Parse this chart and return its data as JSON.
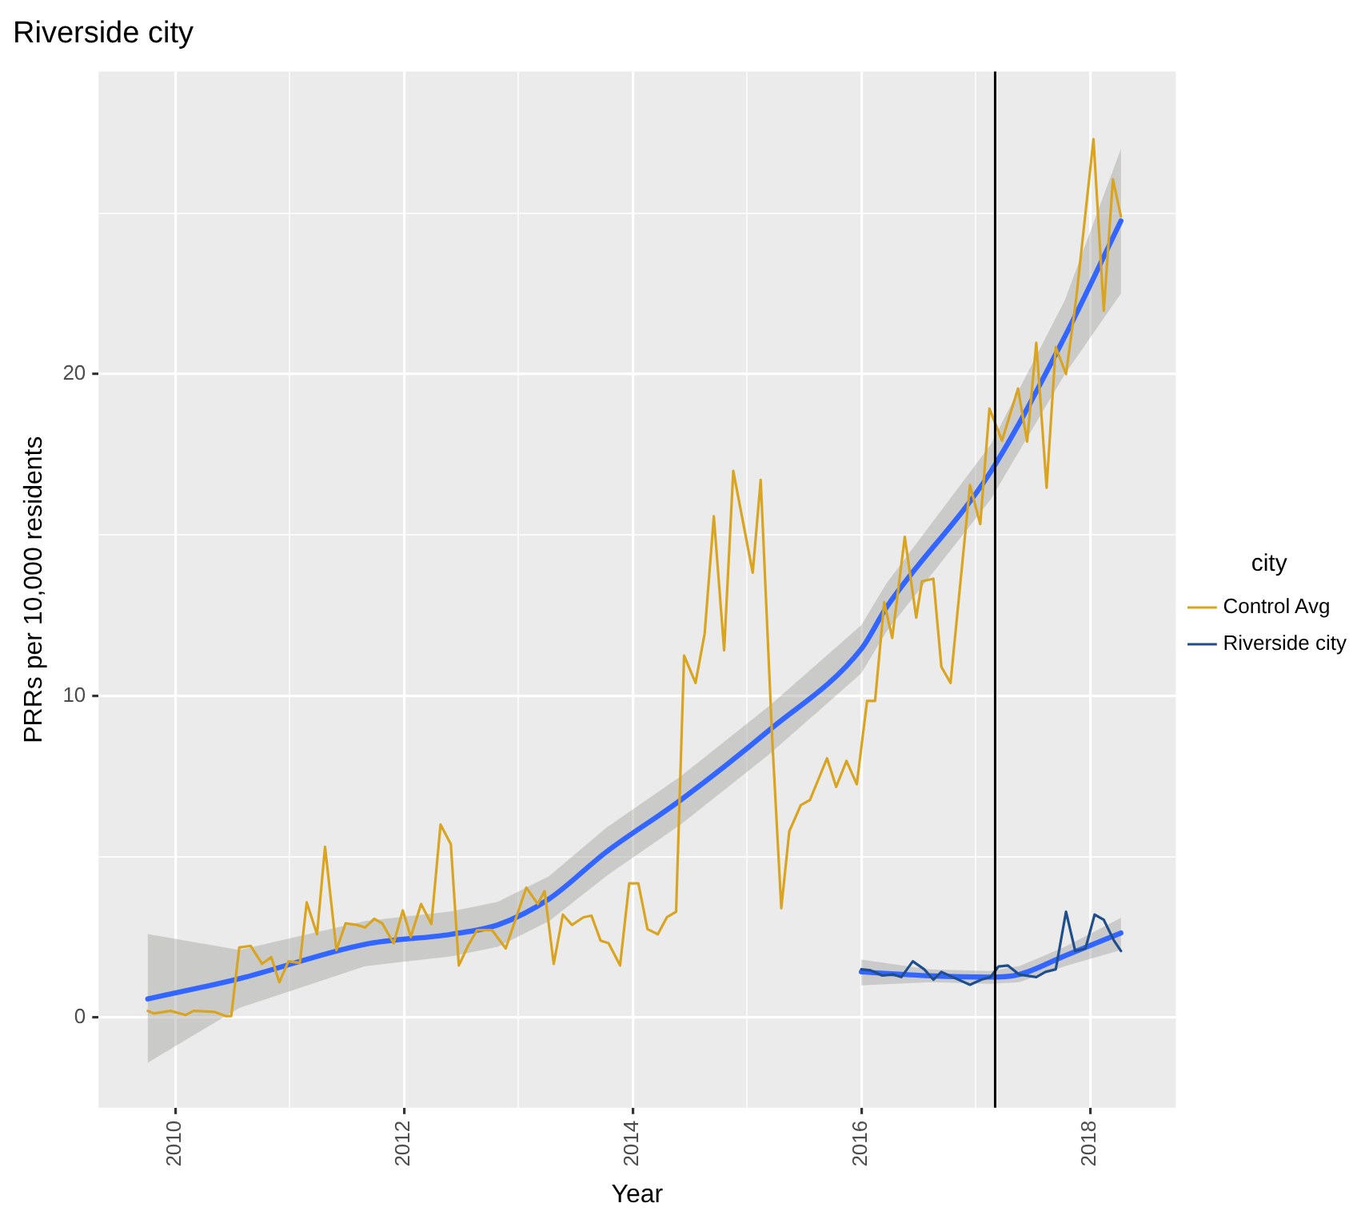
{
  "chart_data": {
    "type": "line",
    "title": "Riverside city",
    "xlabel": "Year",
    "ylabel": "PRRs per 10,000 residents",
    "legend_title": "city",
    "legend": "right",
    "grid": true,
    "marker": "none",
    "line_style": "solid",
    "xlim": [
      2009.33,
      2018.75
    ],
    "xticks": [
      {
        "value": 2010,
        "label": "2010"
      },
      {
        "value": 2011,
        "label": null
      },
      {
        "value": 2012,
        "label": "2012"
      },
      {
        "value": 2013,
        "label": null
      },
      {
        "value": 2014,
        "label": "2014"
      },
      {
        "value": 2015,
        "label": null
      },
      {
        "value": 2016,
        "label": "2016"
      },
      {
        "value": 2017,
        "label": null
      },
      {
        "value": 2018,
        "label": "2018"
      }
    ],
    "ylim": [
      -2.8,
      29.4
    ],
    "yticks": [
      {
        "value": 0,
        "label": "0"
      },
      {
        "value": 5,
        "label": null
      },
      {
        "value": 10,
        "label": "10"
      },
      {
        "value": 15,
        "label": null
      },
      {
        "value": 20,
        "label": "20"
      },
      {
        "value": 25,
        "label": null
      }
    ],
    "ref_lines": [
      {
        "axis": "x",
        "value": 2017.17,
        "color": "#000000"
      }
    ],
    "series": [
      {
        "name": "Control Avg",
        "color": "#d9a521",
        "x": [
          2009.76,
          2009.81,
          2009.96,
          2010.09,
          2010.16,
          2010.34,
          2010.44,
          2010.49,
          2010.56,
          2010.66,
          2010.76,
          2010.84,
          2010.91,
          2010.99,
          2011.09,
          2011.15,
          2011.24,
          2011.31,
          2011.41,
          2011.49,
          2011.59,
          2011.66,
          2011.74,
          2011.81,
          2011.91,
          2011.99,
          2012.06,
          2012.15,
          2012.24,
          2012.32,
          2012.41,
          2012.48,
          2012.56,
          2012.64,
          2012.77,
          2012.89,
          2013.07,
          2013.17,
          2013.23,
          2013.31,
          2013.39,
          2013.47,
          2013.57,
          2013.64,
          2013.72,
          2013.79,
          2013.89,
          2013.97,
          2014.05,
          2014.13,
          2014.22,
          2014.3,
          2014.38,
          2014.45,
          2014.55,
          2014.63,
          2014.71,
          2014.8,
          2014.88,
          2015.05,
          2015.12,
          2015.22,
          2015.3,
          2015.37,
          2015.47,
          2015.55,
          2015.7,
          2015.78,
          2015.87,
          2015.96,
          2016.05,
          2016.12,
          2016.2,
          2016.27,
          2016.38,
          2016.48,
          2016.53,
          2016.63,
          2016.7,
          2016.78,
          2016.95,
          2017.04,
          2017.12,
          2017.23,
          2017.37,
          2017.45,
          2017.53,
          2017.62,
          2017.7,
          2017.79,
          2017.88,
          2018.03,
          2018.12,
          2018.2,
          2018.27
        ],
        "values": [
          0.21,
          0.13,
          0.21,
          0.08,
          0.21,
          0.18,
          0.05,
          0.05,
          2.18,
          2.23,
          1.67,
          1.88,
          1.1,
          1.75,
          1.7,
          3.58,
          2.59,
          5.31,
          2.1,
          2.93,
          2.88,
          2.8,
          3.07,
          2.93,
          2.31,
          3.33,
          2.51,
          3.53,
          2.91,
          6.0,
          5.39,
          1.62,
          2.23,
          2.72,
          2.72,
          2.15,
          4.04,
          3.53,
          3.93,
          1.67,
          3.2,
          2.88,
          3.12,
          3.17,
          2.39,
          2.31,
          1.62,
          4.17,
          4.17,
          2.75,
          2.59,
          3.12,
          3.29,
          11.25,
          10.4,
          11.94,
          15.58,
          11.41,
          16.99,
          13.83,
          16.71,
          8.7,
          3.4,
          5.79,
          6.6,
          6.76,
          8.06,
          7.17,
          7.98,
          7.25,
          9.84,
          9.84,
          12.91,
          11.8,
          14.94,
          12.43,
          13.56,
          13.64,
          10.9,
          10.4,
          16.55,
          15.34,
          18.93,
          17.93,
          19.55,
          17.9,
          20.97,
          16.47,
          20.84,
          20.0,
          22.38,
          27.3,
          21.97,
          26.05,
          24.9
        ]
      },
      {
        "name": "Riverside city",
        "color": "#1f4e8a",
        "x": [
          2016.0,
          2016.08,
          2016.18,
          2016.28,
          2016.35,
          2016.45,
          2016.55,
          2016.63,
          2016.7,
          2016.78,
          2016.95,
          2017.05,
          2017.13,
          2017.2,
          2017.28,
          2017.38,
          2017.53,
          2017.61,
          2017.7,
          2017.79,
          2017.87,
          2017.96,
          2018.04,
          2018.12,
          2018.21,
          2018.27
        ],
        "values": [
          1.5,
          1.47,
          1.31,
          1.34,
          1.26,
          1.75,
          1.5,
          1.18,
          1.42,
          1.29,
          1.02,
          1.18,
          1.26,
          1.59,
          1.62,
          1.34,
          1.26,
          1.42,
          1.5,
          3.29,
          2.07,
          2.15,
          3.2,
          3.04,
          2.39,
          2.07
        ]
      },
      {
        "color": "#3366ff",
        "x": [
          2009.76,
          2010.56,
          2011.66,
          2012.41,
          2012.82,
          2013.27,
          2013.77,
          2014.42,
          2015.2,
          2016.0,
          2016.22,
          2017.13,
          2017.78,
          2018.27
        ],
        "values": [
          0.58,
          1.21,
          2.28,
          2.59,
          2.88,
          3.69,
          5.15,
          6.76,
          8.95,
          11.46,
          12.75,
          16.96,
          21.17,
          24.76
        ],
        "lower": [
          -1.4,
          0.3,
          1.6,
          1.9,
          2.2,
          3.0,
          4.4,
          6.0,
          8.2,
          10.7,
          12.0,
          16.1,
          20.0,
          22.5
        ],
        "upper": [
          2.6,
          2.1,
          3.0,
          3.3,
          3.6,
          4.4,
          5.9,
          7.5,
          9.7,
          12.2,
          13.5,
          17.8,
          22.3,
          27.0
        ]
      },
      {
        "color": "#3366ff",
        "x": [
          2016.0,
          2016.6,
          2017.13,
          2017.38,
          2017.78,
          2018.27
        ],
        "values": [
          1.42,
          1.3,
          1.26,
          1.34,
          1.92,
          2.63
        ],
        "lower": [
          1.0,
          1.1,
          1.05,
          1.1,
          1.6,
          2.1
        ],
        "upper": [
          1.8,
          1.5,
          1.45,
          1.6,
          2.2,
          3.1
        ]
      }
    ]
  }
}
